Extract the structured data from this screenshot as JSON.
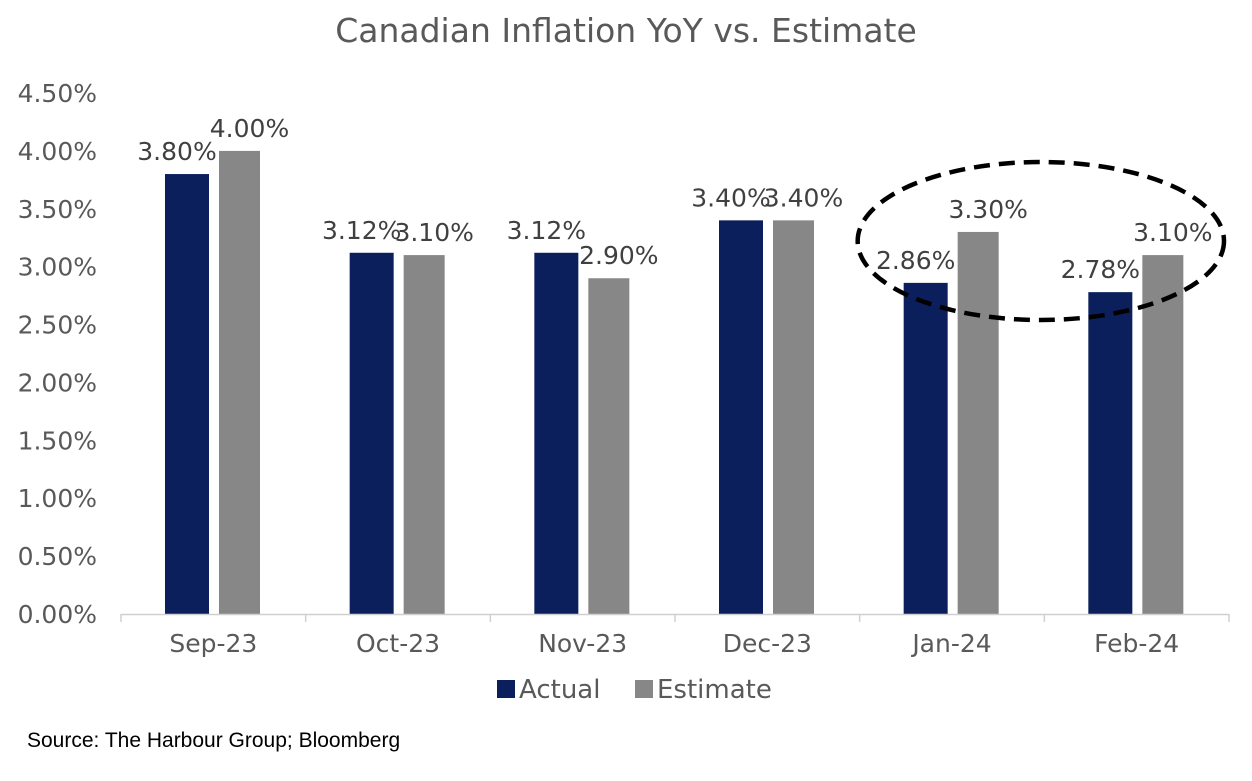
{
  "chart_data": {
    "type": "bar",
    "title": "Canadian Inflation YoY vs. Estimate",
    "xlabel": "",
    "ylabel": "",
    "categories": [
      "Sep-23",
      "Oct-23",
      "Nov-23",
      "Dec-23",
      "Jan-24",
      "Feb-24"
    ],
    "series": [
      {
        "name": "Actual",
        "color": "#0a1f5c",
        "values": [
          3.8,
          3.12,
          3.12,
          3.4,
          2.86,
          2.78
        ],
        "labels": [
          "3.80%",
          "3.12%",
          "3.12%",
          "3.40%",
          "2.86%",
          "2.78%"
        ]
      },
      {
        "name": "Estimate",
        "color": "#878787",
        "values": [
          4.0,
          3.1,
          2.9,
          3.4,
          3.3,
          3.1
        ],
        "labels": [
          "4.00%",
          "3.10%",
          "2.90%",
          "3.40%",
          "3.30%",
          "3.10%"
        ]
      }
    ],
    "ylim": [
      0,
      4.5
    ],
    "yticks": [
      0,
      0.5,
      1.0,
      1.5,
      2.0,
      2.5,
      3.0,
      3.5,
      4.0,
      4.5
    ],
    "ytick_labels": [
      "0.00%",
      "0.50%",
      "1.00%",
      "1.50%",
      "2.00%",
      "2.50%",
      "3.00%",
      "3.50%",
      "4.00%",
      "4.50%"
    ],
    "grid": false,
    "legend": {
      "position": "bottom",
      "entries": [
        "Actual",
        "Estimate"
      ]
    },
    "annotations": [
      {
        "type": "dashed-ellipse",
        "encloses": [
          "Jan-24",
          "Feb-24"
        ]
      }
    ]
  },
  "source": "Source: The Harbour Group; Bloomberg"
}
